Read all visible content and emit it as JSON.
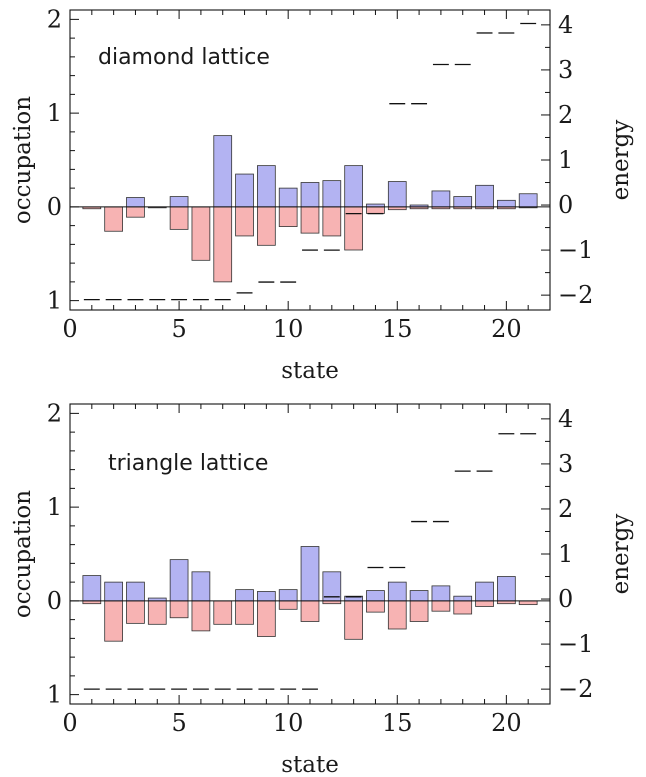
{
  "chart_data": [
    {
      "type": "bar",
      "title": "diamond lattice",
      "xlabel": "state",
      "ylabel": "occupation",
      "y2label": "energy",
      "xlim": [
        0,
        22
      ],
      "xticks": [
        0,
        5,
        10,
        15,
        20
      ],
      "ylim": [
        -1.1,
        2.1
      ],
      "yticks": [
        {
          "v": 2,
          "label": "2"
        },
        {
          "v": 1,
          "label": "1"
        },
        {
          "v": 0,
          "label": "0"
        },
        {
          "v": -1,
          "label": "1"
        }
      ],
      "y2lim": [
        -2.33,
        4.33
      ],
      "y2ticks": [
        {
          "v": 4,
          "label": "4"
        },
        {
          "v": 3,
          "label": "3"
        },
        {
          "v": 2,
          "label": "2"
        },
        {
          "v": 1,
          "label": "1"
        },
        {
          "v": 0,
          "label": "0"
        },
        {
          "v": -1,
          "label": "−1"
        },
        {
          "v": -2,
          "label": "−2"
        }
      ],
      "categories": [
        1,
        2,
        3,
        4,
        5,
        6,
        7,
        8,
        9,
        10,
        11,
        12,
        13,
        14,
        15,
        16,
        17,
        18,
        19,
        20,
        21
      ],
      "series": [
        {
          "name": "",
          "color": "#b3b3f2",
          "values": [
            0.0,
            0.0,
            0.1,
            0.0,
            0.11,
            0.0,
            0.76,
            0.35,
            0.44,
            0.2,
            0.26,
            0.28,
            0.44,
            0.03,
            0.27,
            0.02,
            0.17,
            0.11,
            0.23,
            0.07,
            0.14
          ]
        },
        {
          "name": "",
          "color": "#f7b3b3",
          "values": [
            -0.02,
            -0.26,
            -0.11,
            -0.01,
            -0.24,
            -0.57,
            -0.8,
            -0.31,
            -0.41,
            -0.21,
            -0.28,
            -0.31,
            -0.46,
            -0.07,
            -0.03,
            -0.02,
            -0.02,
            -0.02,
            -0.02,
            -0.02,
            -0.01
          ]
        }
      ],
      "energy_levels": [
        -2.1,
        -2.1,
        -2.1,
        -2.1,
        -2.1,
        -2.1,
        -2.1,
        -1.95,
        -1.71,
        -1.71,
        -1.0,
        -1.0,
        -0.19,
        -0.19,
        2.25,
        2.25,
        3.12,
        3.12,
        3.82,
        3.82,
        4.03
      ]
    },
    {
      "type": "bar",
      "title": "triangle lattice",
      "xlabel": "state",
      "ylabel": "occupation",
      "y2label": "energy",
      "xlim": [
        0,
        22
      ],
      "xticks": [
        0,
        5,
        10,
        15,
        20
      ],
      "ylim": [
        -1.1,
        2.1
      ],
      "yticks": [
        {
          "v": 2,
          "label": "2"
        },
        {
          "v": 1,
          "label": "1"
        },
        {
          "v": 0,
          "label": "0"
        },
        {
          "v": -1,
          "label": "1"
        }
      ],
      "y2lim": [
        -2.33,
        4.33
      ],
      "y2ticks": [
        {
          "v": 4,
          "label": "4"
        },
        {
          "v": 3,
          "label": "3"
        },
        {
          "v": 2,
          "label": "2"
        },
        {
          "v": 1,
          "label": "1"
        },
        {
          "v": 0,
          "label": "0"
        },
        {
          "v": -1,
          "label": "−1"
        },
        {
          "v": -2,
          "label": "−2"
        }
      ],
      "categories": [
        1,
        2,
        3,
        4,
        5,
        6,
        7,
        8,
        9,
        10,
        11,
        12,
        13,
        14,
        15,
        16,
        17,
        18,
        19,
        20,
        21
      ],
      "series": [
        {
          "name": "",
          "color": "#b3b3f2",
          "values": [
            0.27,
            0.2,
            0.2,
            0.03,
            0.44,
            0.31,
            0.0,
            0.12,
            0.1,
            0.12,
            0.58,
            0.31,
            0.05,
            0.11,
            0.2,
            0.11,
            0.16,
            0.05,
            0.2,
            0.26,
            0.0
          ]
        },
        {
          "name": "",
          "color": "#f7b3b3",
          "values": [
            -0.03,
            -0.43,
            -0.24,
            -0.25,
            -0.18,
            -0.32,
            -0.25,
            -0.25,
            -0.38,
            -0.09,
            -0.22,
            -0.03,
            -0.41,
            -0.12,
            -0.3,
            -0.22,
            -0.11,
            -0.14,
            -0.06,
            -0.03,
            -0.04
          ]
        }
      ],
      "energy_levels": [
        -2.0,
        -2.0,
        -2.0,
        -2.0,
        -2.0,
        -2.0,
        -2.0,
        -2.0,
        -2.0,
        -2.0,
        -2.0,
        0.05,
        0.05,
        0.7,
        0.7,
        1.72,
        1.72,
        2.84,
        2.84,
        3.67,
        3.67
      ]
    }
  ]
}
